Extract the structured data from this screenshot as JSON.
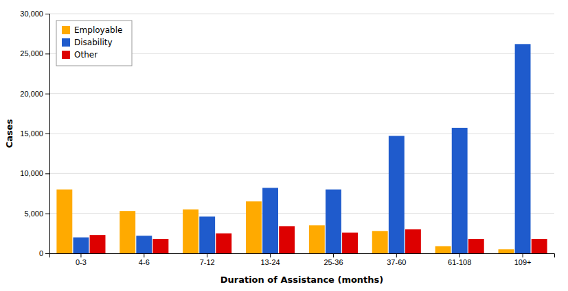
{
  "chart_data": {
    "type": "bar",
    "xlabel": "Duration of Assistance (months)",
    "ylabel": "Cases",
    "categories": [
      "0-3",
      "4-6",
      "7-12",
      "13-24",
      "25-36",
      "37-60",
      "61-108",
      "109+"
    ],
    "series": [
      {
        "name": "Employable",
        "color": "#FFAA00",
        "values": [
          8000,
          5300,
          5500,
          6500,
          3500,
          2800,
          900,
          500
        ]
      },
      {
        "name": "Disability",
        "color": "#1F5BCC",
        "values": [
          2000,
          2200,
          4600,
          8200,
          8000,
          14700,
          15700,
          26200
        ]
      },
      {
        "name": "Other",
        "color": "#DD0000",
        "values": [
          2300,
          1800,
          2500,
          3400,
          2600,
          3000,
          1800,
          1800
        ]
      }
    ],
    "ylim": [
      0,
      30000
    ],
    "yticks": [
      0,
      {
        "value": 5000,
        "label": "5,000"
      },
      {
        "value": 10000,
        "label": "10,000"
      },
      {
        "value": 15000,
        "label": "15,000"
      },
      {
        "value": 20000,
        "label": "20,000"
      },
      {
        "value": 25000,
        "label": "25,000"
      },
      {
        "value": 30000,
        "label": "30,000"
      }
    ],
    "grid": true,
    "legend": "upper left"
  }
}
